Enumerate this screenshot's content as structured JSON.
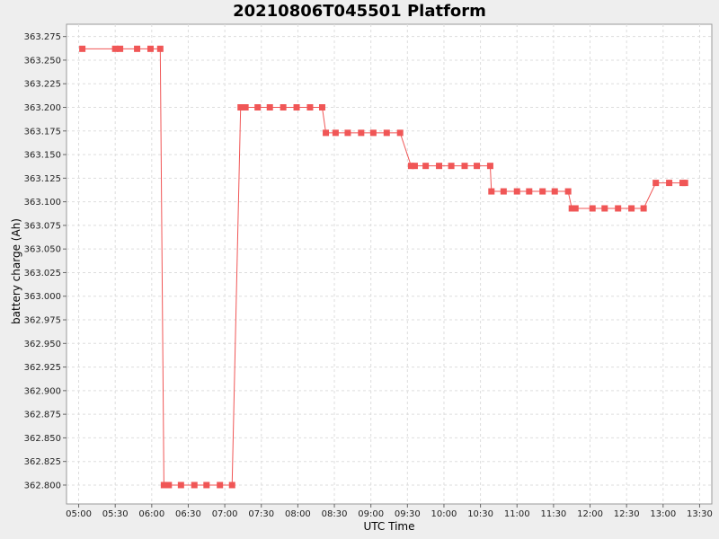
{
  "chart_data": {
    "type": "line",
    "title": "20210806T045501 Platform",
    "xlabel": "UTC Time",
    "ylabel": "battery charge (Ah)",
    "xlim": [
      "04:50",
      "13:40"
    ],
    "ylim": [
      362.78,
      363.288
    ],
    "grid": true,
    "legend": "none",
    "colors": {
      "series": "#f05656",
      "background": "#ffffff",
      "outer": "#eeeeee",
      "grid": "#dddddd"
    },
    "x_ticks": [
      "05:00",
      "05:30",
      "06:00",
      "06:30",
      "07:00",
      "07:30",
      "08:00",
      "08:30",
      "09:00",
      "09:30",
      "10:00",
      "10:30",
      "11:00",
      "11:30",
      "12:00",
      "12:30",
      "13:00",
      "13:30"
    ],
    "y_ticks": [
      "363.275",
      "363.250",
      "363.225",
      "363.200",
      "363.175",
      "363.150",
      "363.125",
      "363.100",
      "363.075",
      "363.050",
      "363.025",
      "363.000",
      "362.975",
      "362.950",
      "362.925",
      "362.900",
      "362.875",
      "362.850",
      "362.825",
      "362.800"
    ],
    "series": [
      {
        "x": [
          "05:03",
          "05:30",
          "05:34",
          "05:48",
          "05:59",
          "06:07",
          "06:10",
          "06:14",
          "06:24",
          "06:35",
          "06:45",
          "06:56",
          "07:06",
          "07:13",
          "07:17",
          "07:27",
          "07:37",
          "07:48",
          "07:59",
          "08:10",
          "08:20",
          "08:23",
          "08:31",
          "08:41",
          "08:52",
          "09:02",
          "09:13",
          "09:24",
          "09:33",
          "09:36",
          "09:45",
          "09:56",
          "10:06",
          "10:17",
          "10:27",
          "10:38",
          "10:39",
          "10:49",
          "11:00",
          "11:10",
          "11:21",
          "11:31",
          "11:42",
          "11:45",
          "11:48",
          "12:02",
          "12:12",
          "12:23",
          "12:34",
          "12:44",
          "12:54",
          "13:05",
          "13:16",
          "13:18"
        ],
        "y": [
          363.262,
          363.262,
          363.262,
          363.262,
          363.262,
          363.262,
          362.8,
          362.8,
          362.8,
          362.8,
          362.8,
          362.8,
          362.8,
          363.2,
          363.2,
          363.2,
          363.2,
          363.2,
          363.2,
          363.2,
          363.2,
          363.173,
          363.173,
          363.173,
          363.173,
          363.173,
          363.173,
          363.173,
          363.138,
          363.138,
          363.138,
          363.138,
          363.138,
          363.138,
          363.138,
          363.138,
          363.111,
          363.111,
          363.111,
          363.111,
          363.111,
          363.111,
          363.111,
          363.093,
          363.093,
          363.093,
          363.093,
          363.093,
          363.093,
          363.093,
          363.12,
          363.12,
          363.12,
          363.12
        ]
      }
    ]
  }
}
